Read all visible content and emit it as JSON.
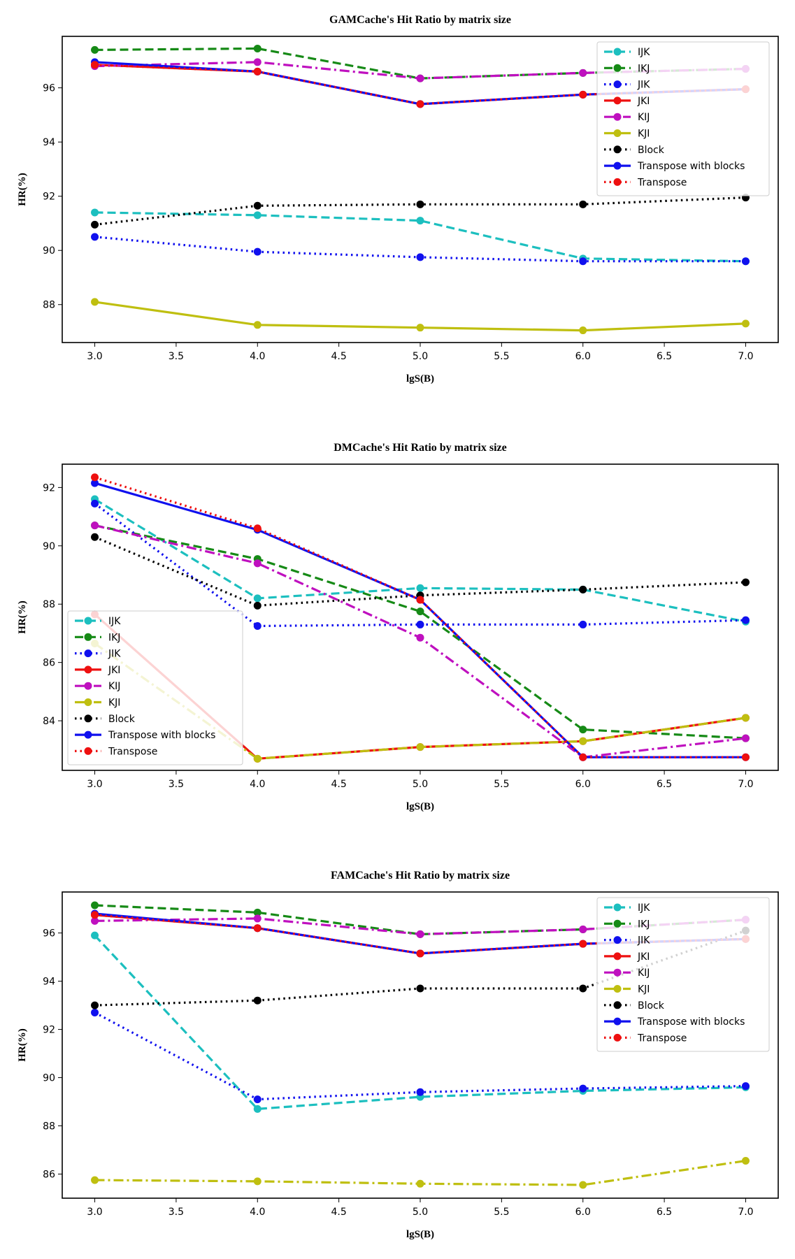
{
  "chart_data": [
    {
      "type": "line",
      "title": "GAMCache's Hit Ratio by matrix size",
      "xlabel": "lgS(B)",
      "ylabel": "HR(%)",
      "xlim": [
        2.8,
        7.2
      ],
      "ylim": [
        86.6,
        97.9
      ],
      "xticks": [
        3.0,
        3.5,
        4.0,
        4.5,
        5.0,
        5.5,
        6.0,
        6.5,
        7.0
      ],
      "xtick_labels": [
        "3.0",
        "3.5",
        "4.0",
        "4.5",
        "5.0",
        "5.5",
        "6.0",
        "6.5",
        "7.0"
      ],
      "yticks": [
        88,
        90,
        92,
        94,
        96
      ],
      "ytick_labels": [
        "88",
        "90",
        "92",
        "94",
        "96"
      ],
      "legend_position": "top-right",
      "x": [
        3,
        4,
        5,
        6,
        7
      ],
      "series": [
        {
          "name": "IJK",
          "values": [
            91.4,
            91.3,
            91.1,
            89.7,
            89.6
          ],
          "color": "#1cbfbf",
          "dash": "dashed"
        },
        {
          "name": "IKJ",
          "values": [
            97.4,
            97.45,
            96.35,
            96.55,
            96.7
          ],
          "color": "#168a16",
          "dash": "dashed"
        },
        {
          "name": "JIK",
          "values": [
            90.5,
            89.95,
            89.75,
            89.6,
            89.6
          ],
          "color": "#1010ee",
          "dash": "dotted"
        },
        {
          "name": "JKI",
          "values": [
            96.85,
            96.6,
            95.4,
            95.75,
            95.95
          ],
          "color": "#ee1010",
          "dash": "solid"
        },
        {
          "name": "KIJ",
          "values": [
            96.8,
            96.95,
            96.35,
            96.55,
            96.7
          ],
          "color": "#bf10bf",
          "dash": "dashdot"
        },
        {
          "name": "KJI",
          "values": [
            88.1,
            87.25,
            87.15,
            87.05,
            87.3
          ],
          "color": "#bfbf10",
          "dash": "solid"
        },
        {
          "name": "Block",
          "values": [
            90.95,
            91.65,
            91.7,
            91.7,
            91.95
          ],
          "color": "#000000",
          "dash": "dotted"
        },
        {
          "name": "Transpose with blocks",
          "values": [
            96.95,
            96.6,
            95.4,
            95.75,
            95.95
          ],
          "color": "#1010ee",
          "dash": "solid"
        },
        {
          "name": "Transpose",
          "values": [
            96.85,
            96.6,
            95.4,
            95.75,
            95.95
          ],
          "color": "#ee1010",
          "dash": "dotted"
        }
      ]
    },
    {
      "type": "line",
      "title": "DMCache's Hit Ratio by matrix size",
      "xlabel": "lgS(B)",
      "ylabel": "HR(%)",
      "xlim": [
        2.8,
        7.2
      ],
      "ylim": [
        82.3,
        92.8
      ],
      "xticks": [
        3.0,
        3.5,
        4.0,
        4.5,
        5.0,
        5.5,
        6.0,
        6.5,
        7.0
      ],
      "xtick_labels": [
        "3.0",
        "3.5",
        "4.0",
        "4.5",
        "5.0",
        "5.5",
        "6.0",
        "6.5",
        "7.0"
      ],
      "yticks": [
        84,
        86,
        88,
        90,
        92
      ],
      "ytick_labels": [
        "84",
        "86",
        "88",
        "90",
        "92"
      ],
      "legend_position": "bottom-left",
      "x": [
        3,
        4,
        5,
        6,
        7
      ],
      "series": [
        {
          "name": "IJK",
          "values": [
            91.6,
            88.2,
            88.55,
            88.5,
            87.4
          ],
          "color": "#1cbfbf",
          "dash": "dashed"
        },
        {
          "name": "IKJ",
          "values": [
            90.7,
            89.55,
            87.75,
            83.7,
            83.4
          ],
          "color": "#168a16",
          "dash": "dashed"
        },
        {
          "name": "JIK",
          "values": [
            91.45,
            87.25,
            87.3,
            87.3,
            87.45
          ],
          "color": "#1010ee",
          "dash": "dotted"
        },
        {
          "name": "JKI",
          "values": [
            87.65,
            82.7,
            83.1,
            83.3,
            84.1
          ],
          "color": "#ee1010",
          "dash": "solid"
        },
        {
          "name": "KIJ",
          "values": [
            90.7,
            89.4,
            86.85,
            82.75,
            83.4
          ],
          "color": "#bf10bf",
          "dash": "dashdot"
        },
        {
          "name": "KJI",
          "values": [
            86.65,
            82.7,
            83.1,
            83.3,
            84.1
          ],
          "color": "#bfbf10",
          "dash": "dashdot"
        },
        {
          "name": "Block",
          "values": [
            90.3,
            87.95,
            88.3,
            88.5,
            88.75
          ],
          "color": "#000000",
          "dash": "dotted"
        },
        {
          "name": "Transpose with blocks",
          "values": [
            92.15,
            90.55,
            88.15,
            82.75,
            82.75
          ],
          "color": "#1010ee",
          "dash": "solid"
        },
        {
          "name": "Transpose",
          "values": [
            92.35,
            90.6,
            88.15,
            82.75,
            82.75
          ],
          "color": "#ee1010",
          "dash": "dotted"
        }
      ]
    },
    {
      "type": "line",
      "title": "FAMCache's Hit Ratio by matrix size",
      "xlabel": "lgS(B)",
      "ylabel": "HR(%)",
      "xlim": [
        2.8,
        7.2
      ],
      "ylim": [
        85.0,
        97.7
      ],
      "xticks": [
        3.0,
        3.5,
        4.0,
        4.5,
        5.0,
        5.5,
        6.0,
        6.5,
        7.0
      ],
      "xtick_labels": [
        "3.0",
        "3.5",
        "4.0",
        "4.5",
        "5.0",
        "5.5",
        "6.0",
        "6.5",
        "7.0"
      ],
      "yticks": [
        86,
        88,
        90,
        92,
        94,
        96
      ],
      "ytick_labels": [
        "86",
        "88",
        "90",
        "92",
        "94",
        "96"
      ],
      "legend_position": "top-right",
      "x": [
        3,
        4,
        5,
        6,
        7
      ],
      "series": [
        {
          "name": "IJK",
          "values": [
            95.9,
            88.7,
            89.2,
            89.45,
            89.6
          ],
          "color": "#1cbfbf",
          "dash": "dashed"
        },
        {
          "name": "IKJ",
          "values": [
            97.15,
            96.85,
            95.95,
            96.15,
            96.55
          ],
          "color": "#168a16",
          "dash": "dashed"
        },
        {
          "name": "JIK",
          "values": [
            92.7,
            89.1,
            89.4,
            89.55,
            89.65
          ],
          "color": "#1010ee",
          "dash": "dotted"
        },
        {
          "name": "JKI",
          "values": [
            96.75,
            96.2,
            95.15,
            95.55,
            95.75
          ],
          "color": "#ee1010",
          "dash": "solid"
        },
        {
          "name": "KIJ",
          "values": [
            96.5,
            96.6,
            95.95,
            96.15,
            96.55
          ],
          "color": "#bf10bf",
          "dash": "dashdot"
        },
        {
          "name": "KJI",
          "values": [
            85.75,
            85.7,
            85.6,
            85.55,
            86.55
          ],
          "color": "#bfbf10",
          "dash": "dashdot"
        },
        {
          "name": "Block",
          "values": [
            93.0,
            93.2,
            93.7,
            93.7,
            96.1
          ],
          "color": "#000000",
          "dash": "dotted"
        },
        {
          "name": "Transpose with blocks",
          "values": [
            96.8,
            96.2,
            95.15,
            95.55,
            95.75
          ],
          "color": "#1010ee",
          "dash": "solid"
        },
        {
          "name": "Transpose",
          "values": [
            96.75,
            96.2,
            95.15,
            95.55,
            95.75
          ],
          "color": "#ee1010",
          "dash": "dotted"
        }
      ]
    }
  ]
}
